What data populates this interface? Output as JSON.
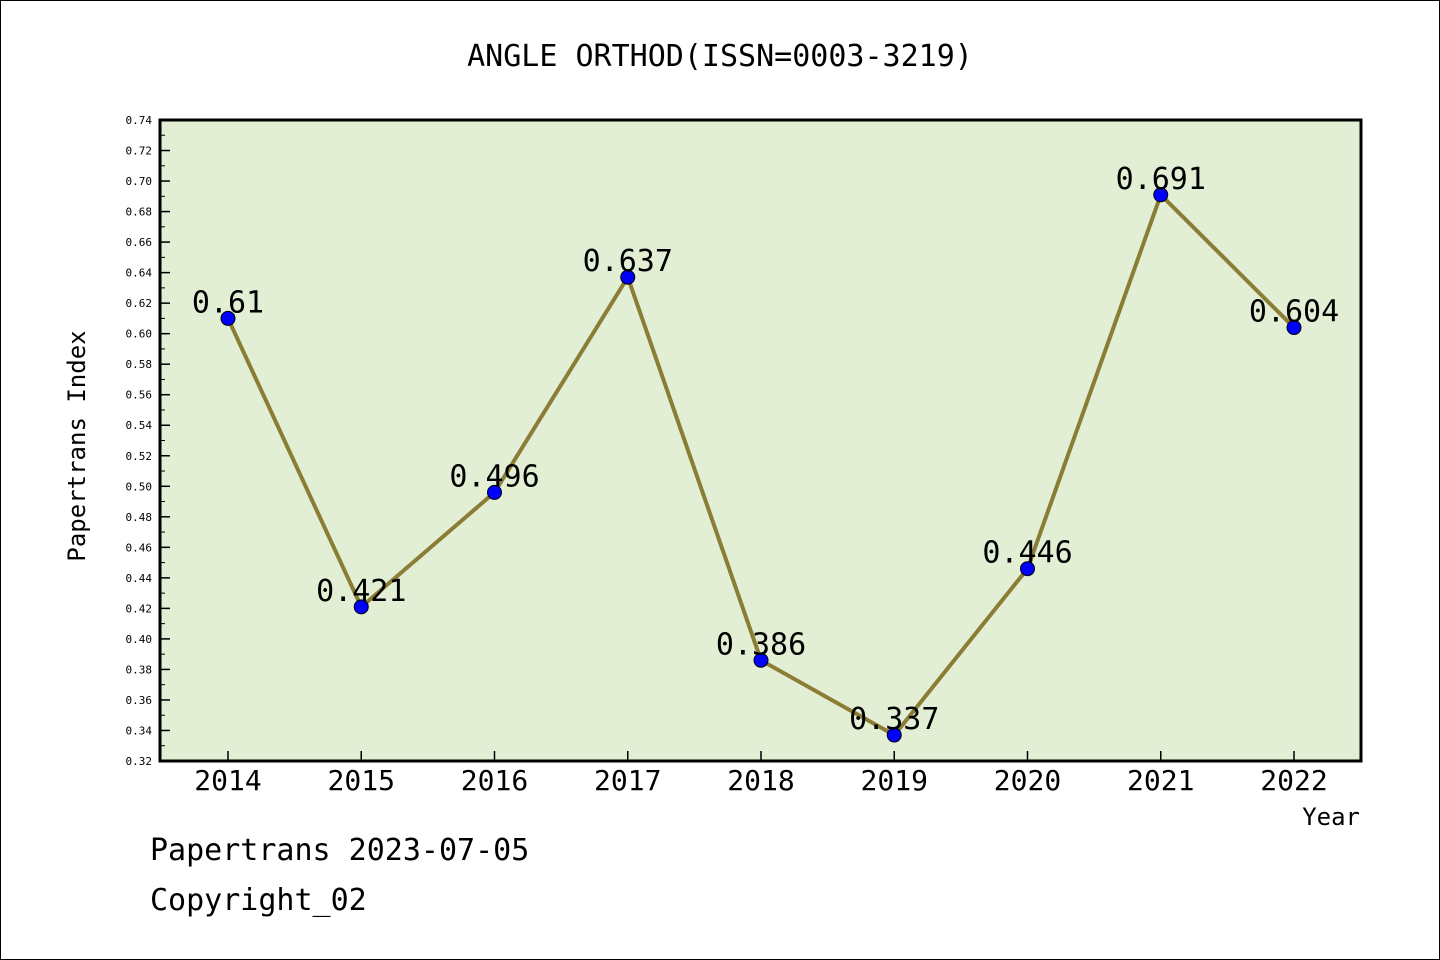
{
  "chart_data": {
    "type": "line",
    "title": "ANGLE ORTHOD(ISSN=0003-3219)",
    "xlabel": "Year",
    "ylabel": "Papertrans Index",
    "categories": [
      "2014",
      "2015",
      "2016",
      "2017",
      "2018",
      "2019",
      "2020",
      "2021",
      "2022"
    ],
    "series": [
      {
        "values": [
          0.61,
          0.421,
          0.496,
          0.637,
          0.386,
          0.337,
          0.446,
          0.691,
          0.604
        ],
        "labels": [
          "0.61",
          "0.421",
          "0.496",
          "0.637",
          "0.386",
          "0.337",
          "0.446",
          "0.691",
          "0.604"
        ]
      }
    ],
    "ylim": [
      0.32,
      0.74
    ],
    "y_ticks": [
      "0.32",
      "0.34",
      "0.36",
      "0.38",
      "0.40",
      "0.42",
      "0.44",
      "0.46",
      "0.48",
      "0.50",
      "0.52",
      "0.54",
      "0.56",
      "0.58",
      "0.60",
      "0.62",
      "0.64",
      "0.66",
      "0.68",
      "0.70",
      "0.72",
      "0.74"
    ],
    "grid": false,
    "colors": {
      "plot_background": "#e2efd5",
      "line": "#8b7d36",
      "marker": "#0000ff"
    }
  },
  "footer": {
    "date_line": "Papertrans 2023-07-05",
    "copyright_line": "Copyright_02"
  }
}
